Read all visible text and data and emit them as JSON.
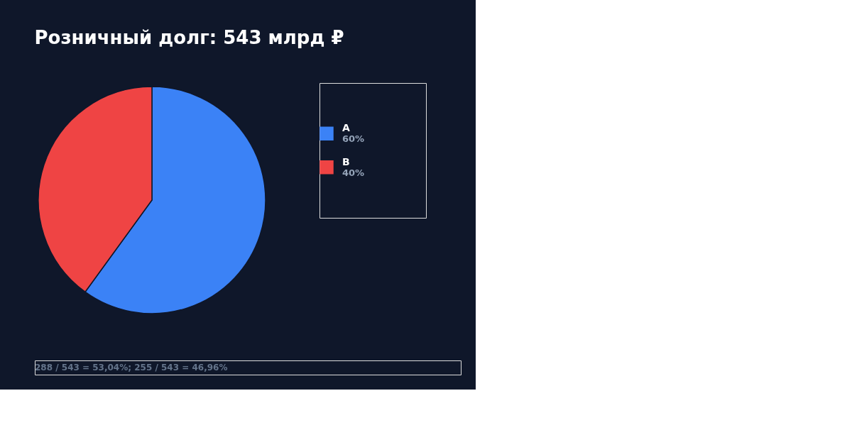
{
  "chart_data": {
    "type": "pie",
    "title": "Розничный долг: 543 млрд ₽",
    "categories": [
      "A",
      "B"
    ],
    "values": [
      60,
      40
    ],
    "colors": [
      "#3b82f6",
      "#ef4444"
    ],
    "value_labels": [
      "60%",
      "40%"
    ],
    "legend": "right",
    "annotations": [
      "288 / 543 = 53,04%; 255 / 543 = 46,96%"
    ]
  }
}
